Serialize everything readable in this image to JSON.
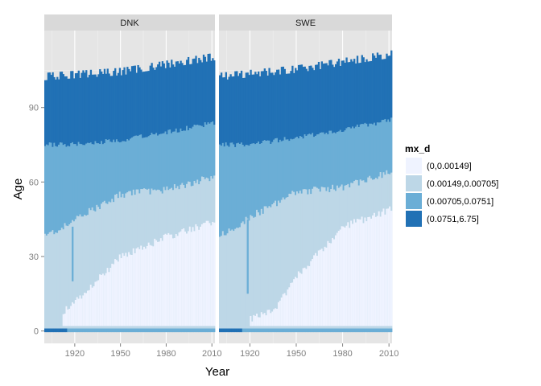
{
  "chart_data": {
    "type": "heatmap",
    "facets": [
      "DNK",
      "SWE"
    ],
    "xlabel": "Year",
    "ylabel": "Age",
    "x_ticks": [
      1920,
      1950,
      1980,
      2010
    ],
    "y_ticks": [
      0,
      30,
      60,
      90
    ],
    "xlim": [
      1900,
      2012
    ],
    "ylim": [
      -5,
      121
    ],
    "legend": {
      "title": "mx_d",
      "position": "right",
      "items": [
        {
          "label": "(0,0.00149]",
          "color": "#EFF3FF"
        },
        {
          "label": "(0.00149,0.00705]",
          "color": "#BDD7E7"
        },
        {
          "label": "(0.00705,0.0751]",
          "color": "#6BAED6"
        },
        {
          "label": "(0.0751,6.75]",
          "color": "#2171B5"
        }
      ]
    },
    "series": [
      {
        "facet": "DNK",
        "year_range": [
          1900,
          2011
        ],
        "boundaries": [
          {
            "between": "(0.0751,6.75] / (0.00705,0.0751]",
            "years": [
              1900,
              1920,
              1950,
              1980,
              2011
            ],
            "ages": [
              75,
              75,
              77,
              80,
              84
            ]
          },
          {
            "between": "(0.00705,0.0751] / (0.00149,0.00705]",
            "years": [
              1900,
              1920,
              1950,
              1980,
              2011
            ],
            "ages": [
              38,
              45,
              55,
              57,
              62
            ]
          },
          {
            "between": "(0.00149,0.00705] / (0,0.00149]",
            "years": [
              1912,
              1920,
              1950,
              1980,
              2011
            ],
            "ages": [
              8,
              12,
              30,
              38,
              44
            ]
          },
          {
            "between": "max age",
            "years": [
              1900,
              1950,
              2011
            ],
            "ages": [
              102,
              104,
              110
            ]
          }
        ]
      },
      {
        "facet": "SWE",
        "year_range": [
          1900,
          2011
        ],
        "boundaries": [
          {
            "between": "(0.0751,6.75] / (0.00705,0.0751]",
            "years": [
              1900,
              1920,
              1950,
              1980,
              2011
            ],
            "ages": [
              75,
              75,
              78,
              81,
              85
            ]
          },
          {
            "between": "(0.00705,0.0751] / (0.00149,0.00705]",
            "years": [
              1900,
              1920,
              1950,
              1980,
              2011
            ],
            "ages": [
              38,
              46,
              56,
              58,
              64
            ]
          },
          {
            "between": "(0.00149,0.00705] / (0,0.00149]",
            "years": [
              1920,
              1935,
              1950,
              1980,
              2011
            ],
            "ages": [
              5,
              8,
              22,
              42,
              49
            ]
          },
          {
            "between": "max age",
            "years": [
              1900,
              1950,
              2011
            ],
            "ages": [
              102,
              105,
              111
            ]
          }
        ]
      }
    ]
  }
}
